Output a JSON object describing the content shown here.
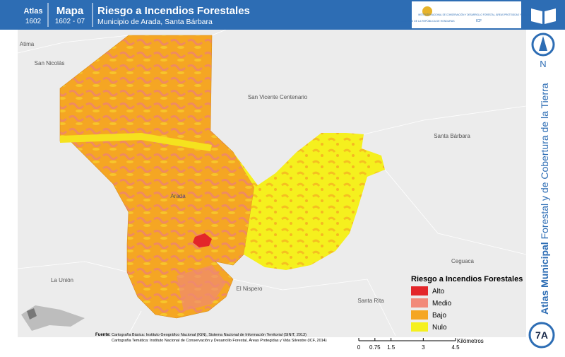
{
  "header": {
    "atlas_label": "Atlas",
    "atlas_code": "1602",
    "map_label": "Mapa",
    "map_code": "1602 - 07",
    "title": "Riesgo a Incendios Forestales",
    "subtitle": "Municipio de Arada, Santa Bárbara"
  },
  "logo": {
    "government": "GOBIERNO DE LA REPÚBLICA DE HONDURAS",
    "institute": "INSTITUTO NACIONAL DE CONSERVACIÓN Y DESARROLLO FORESTAL, ÁREAS PROTEGIDAS Y VIDA SILVESTRE",
    "acronym": "ICF"
  },
  "side": {
    "atlas_bold": "Atlas Municipal",
    "atlas_rest": "Forestal y de Cobertura de la Tierra",
    "north": "N",
    "sheet": "7A"
  },
  "places": [
    "Atima",
    "San Nicolás",
    "San Vicente Centenario",
    "Santa Bárbara",
    "Arada",
    "Ceguaca",
    "La Unión",
    "El Nispero",
    "Santa Rita"
  ],
  "legend": {
    "title": "Riesgo a Incendios Forestales",
    "items": [
      {
        "name": "Alto",
        "color": "#e3262a"
      },
      {
        "name": "Medio",
        "color": "#f28a7a"
      },
      {
        "name": "Bajo",
        "color": "#f5a623"
      },
      {
        "name": "Nulo",
        "color": "#f5f01e"
      }
    ]
  },
  "source": {
    "label": "Fuente:",
    "line1": "Cartografía Básica: Instituto Geográfico Nacional (IGN), Sistema Nacional de Información Territorial (SINIT, 2013)",
    "line2": "Cartografía Temática: Instituto Nacional de Conservación y Desarrollo Forestal, Áreas Protegidas y Vida Silvestre (ICF, 2014)"
  },
  "scale": {
    "ticks": [
      0,
      0.75,
      1.5,
      3,
      4.5
    ],
    "unit": "Kilómetros"
  }
}
